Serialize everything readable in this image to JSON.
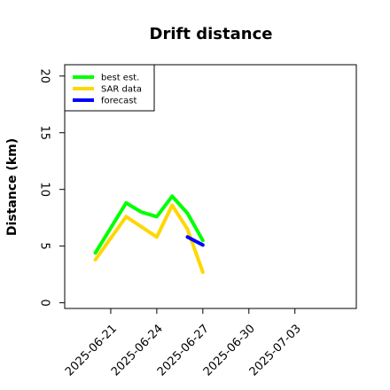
{
  "chart_data": {
    "type": "line",
    "title": "Drift distance",
    "xlabel": "",
    "ylabel": "Distance (km)",
    "xlim": [
      "2025-06-18",
      "2025-07-07"
    ],
    "ylim": [
      -0.5,
      21
    ],
    "yticks": [
      0,
      5,
      10,
      15,
      20
    ],
    "xticks": [
      "2025-06-21",
      "2025-06-24",
      "2025-06-27",
      "2025-06-30",
      "2025-07-03"
    ],
    "grid": false,
    "legend_position": "top-left",
    "series": [
      {
        "name": "best est.",
        "color": "#00ff00",
        "points": [
          {
            "x": "2025-06-20",
            "y": 4.4
          },
          {
            "x": "2025-06-22",
            "y": 8.8
          },
          {
            "x": "2025-06-23",
            "y": 8.0
          },
          {
            "x": "2025-06-24",
            "y": 7.6
          },
          {
            "x": "2025-06-25",
            "y": 9.4
          },
          {
            "x": "2025-06-26",
            "y": 7.9
          },
          {
            "x": "2025-06-27",
            "y": 5.5
          }
        ]
      },
      {
        "name": "SAR data",
        "color": "#ffd700",
        "points": [
          {
            "x": "2025-06-20",
            "y": 3.8
          },
          {
            "x": "2025-06-22",
            "y": 7.6
          },
          {
            "x": "2025-06-24",
            "y": 5.8
          },
          {
            "x": "2025-06-25",
            "y": 8.6
          },
          {
            "x": "2025-06-26",
            "y": 6.5
          },
          {
            "x": "2025-06-27",
            "y": 2.7
          }
        ]
      },
      {
        "name": "forecast",
        "color": "#0000ff",
        "points": [
          {
            "x": "2025-06-26",
            "y": 5.8
          },
          {
            "x": "2025-06-27",
            "y": 5.1
          }
        ]
      }
    ]
  }
}
